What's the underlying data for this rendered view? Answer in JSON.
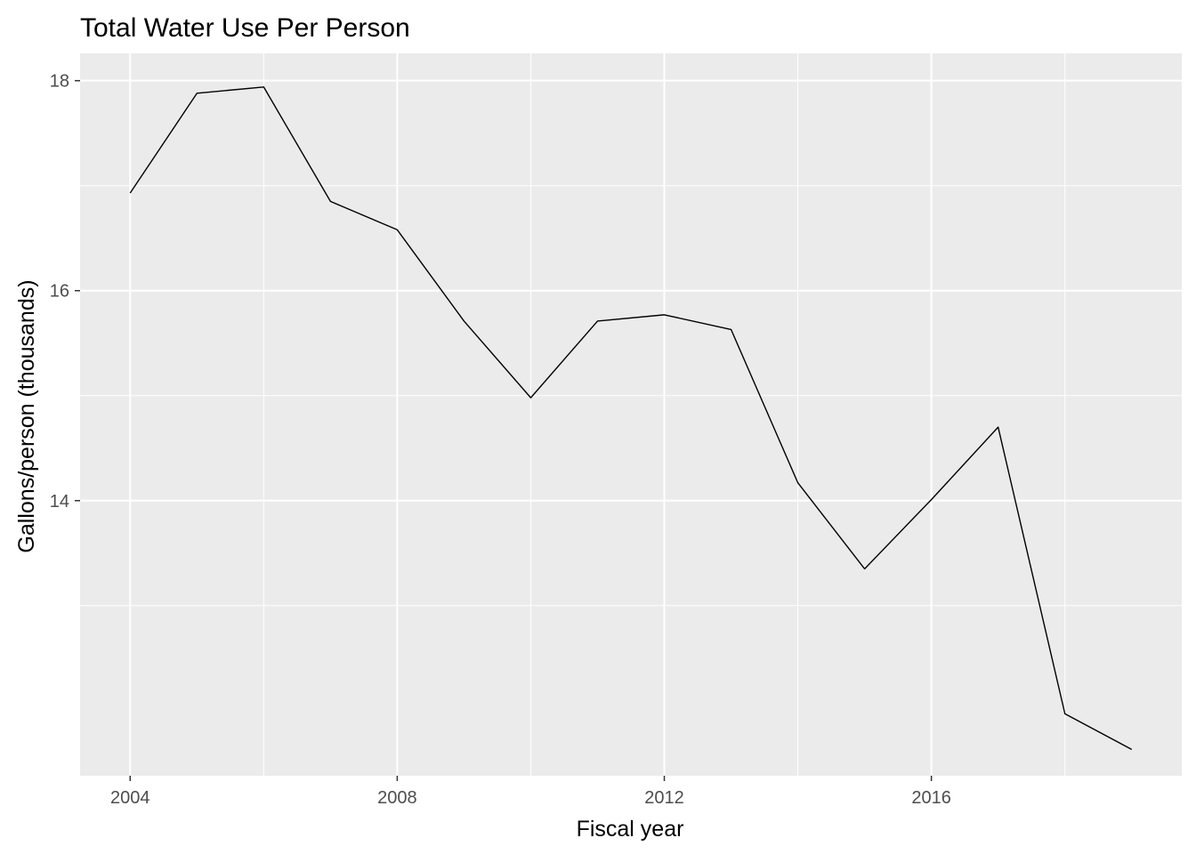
{
  "chart_data": {
    "type": "line",
    "title": "Total Water Use Per Person",
    "xlabel": "Fiscal year",
    "ylabel": "Gallons/person (thousands)",
    "x": [
      2004,
      2005,
      2006,
      2007,
      2008,
      2009,
      2010,
      2011,
      2012,
      2013,
      2014,
      2015,
      2016,
      2017,
      2018,
      2019
    ],
    "series": [
      {
        "values": [
          16.93,
          17.88,
          17.94,
          16.85,
          16.58,
          15.71,
          14.98,
          15.71,
          15.77,
          15.63,
          14.17,
          13.35,
          14.01,
          14.7,
          11.97,
          11.63
        ]
      }
    ],
    "xlim": [
      2003.25,
      2019.75
    ],
    "ylim": [
      11.38,
      18.26
    ],
    "x_ticks": [
      2004,
      2008,
      2012,
      2016
    ],
    "y_ticks": [
      14,
      16,
      18
    ],
    "grid": true,
    "legend": "none",
    "colors": {
      "panel_background": "#ebebeb",
      "grid": "#ffffff",
      "line": "#000000",
      "tick_text": "#4d4d4d"
    }
  }
}
